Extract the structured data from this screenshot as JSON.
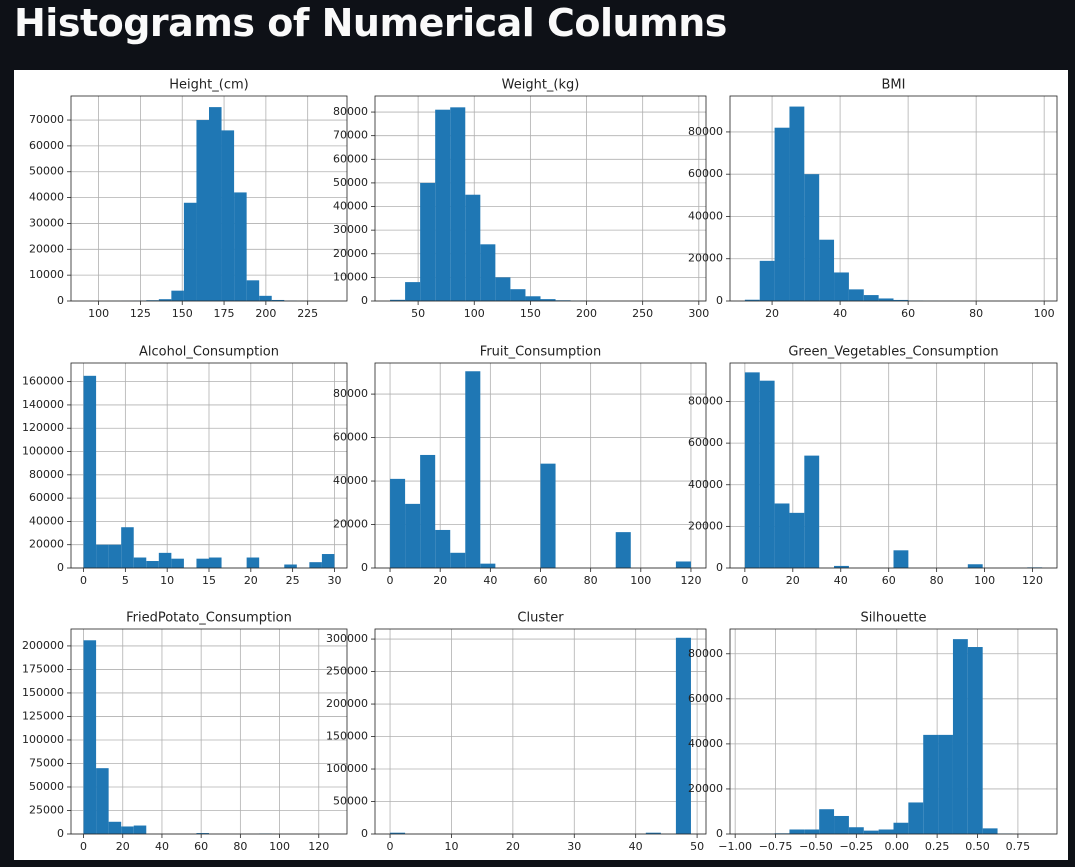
{
  "title": "Histograms of Numerical Columns",
  "chart_data": [
    {
      "type": "histogram",
      "title": "Height_(cm)",
      "color": "#1f77b4",
      "grid": true,
      "bins": [
        91,
        98.5,
        106,
        113.5,
        121,
        128.5,
        136,
        143.5,
        151,
        158.5,
        166,
        173.5,
        181,
        188.5,
        196,
        203.5,
        211,
        218.5,
        226,
        233.5,
        241
      ],
      "counts": [
        0,
        5,
        20,
        50,
        100,
        300,
        700,
        4000,
        38000,
        70000,
        75000,
        66000,
        42000,
        8000,
        2000,
        400,
        100,
        30,
        10,
        5
      ],
      "xlim": [
        83.5,
        248.5
      ],
      "ylim": [
        0,
        79300
      ],
      "xticks": [
        100,
        125,
        150,
        175,
        200,
        225
      ],
      "yticks": [
        0,
        10000,
        20000,
        30000,
        40000,
        50000,
        60000,
        70000
      ]
    },
    {
      "type": "histogram",
      "title": "Weight_(kg)",
      "color": "#1f77b4",
      "grid": true,
      "bins": [
        25,
        38.4,
        51.8,
        65.2,
        78.6,
        92,
        105.4,
        118.8,
        132.2,
        145.6,
        159,
        172.4,
        185.8,
        199.2,
        212.6,
        226,
        239.4,
        252.8,
        266.2,
        279.6,
        293
      ],
      "counts": [
        500,
        8000,
        50000,
        81000,
        82000,
        45000,
        24000,
        10000,
        5000,
        2000,
        800,
        300,
        100,
        50,
        20,
        10,
        5,
        3,
        1,
        1
      ],
      "xlim": [
        11.6,
        306.4
      ],
      "ylim": [
        0,
        86800
      ],
      "xticks": [
        50,
        100,
        150,
        200,
        250,
        300
      ],
      "yticks": [
        0,
        10000,
        20000,
        30000,
        40000,
        50000,
        60000,
        70000,
        80000
      ]
    },
    {
      "type": "histogram",
      "title": "BMI",
      "color": "#1f77b4",
      "grid": true,
      "bins": [
        12,
        16.37,
        20.74,
        25.11,
        29.48,
        33.85,
        38.22,
        42.59,
        46.96,
        51.33,
        55.7,
        60.07,
        64.44,
        68.81,
        73.18,
        77.55,
        81.92,
        86.29,
        90.66,
        95.03,
        99.4
      ],
      "counts": [
        600,
        19000,
        82000,
        92000,
        60000,
        29000,
        13500,
        5500,
        2800,
        1200,
        500,
        200,
        100,
        50,
        20,
        10,
        5,
        3,
        2,
        1
      ],
      "xlim": [
        7.63,
        103.77
      ],
      "ylim": [
        0,
        97000
      ],
      "xticks": [
        20,
        40,
        60,
        80,
        100
      ],
      "yticks": [
        0,
        20000,
        40000,
        60000,
        80000
      ]
    },
    {
      "type": "histogram",
      "title": "Alcohol_Consumption",
      "color": "#1f77b4",
      "grid": true,
      "bins": [
        0,
        1.5,
        3,
        4.5,
        6,
        7.5,
        9,
        10.5,
        12,
        13.5,
        15,
        16.5,
        18,
        19.5,
        21,
        22.5,
        24,
        25.5,
        27,
        28.5,
        30
      ],
      "counts": [
        165000,
        20000,
        20000,
        35000,
        9000,
        6000,
        13000,
        8000,
        0,
        8000,
        9000,
        0,
        0,
        9000,
        0,
        0,
        3000,
        0,
        5000,
        12000
      ],
      "xlim": [
        -1.5,
        31.5
      ],
      "ylim": [
        0,
        176000
      ],
      "xticks": [
        0,
        5,
        10,
        15,
        20,
        25,
        30
      ],
      "yticks": [
        0,
        20000,
        40000,
        60000,
        80000,
        100000,
        120000,
        140000,
        160000
      ]
    },
    {
      "type": "histogram",
      "title": "Fruit_Consumption",
      "color": "#1f77b4",
      "grid": true,
      "bins": [
        0,
        6,
        12,
        18,
        24,
        30,
        36,
        42,
        48,
        54,
        60,
        66,
        72,
        78,
        84,
        90,
        96,
        102,
        108,
        114,
        120
      ],
      "counts": [
        41000,
        29500,
        52000,
        17500,
        7000,
        90500,
        2000,
        0,
        0,
        0,
        48000,
        0,
        0,
        0,
        0,
        16500,
        0,
        0,
        0,
        3000
      ],
      "xlim": [
        -6,
        126
      ],
      "ylim": [
        0,
        94300
      ],
      "xticks": [
        0,
        20,
        40,
        60,
        80,
        100,
        120
      ],
      "yticks": [
        0,
        20000,
        40000,
        60000,
        80000
      ]
    },
    {
      "type": "histogram",
      "title": "Green_Vegetables_Consumption",
      "color": "#1f77b4",
      "grid": true,
      "bins": [
        0,
        6.2,
        12.4,
        18.6,
        24.8,
        31,
        37.2,
        43.4,
        49.6,
        55.8,
        62,
        68.2,
        74.4,
        80.6,
        86.8,
        93,
        99.2,
        105.4,
        111.6,
        117.8,
        124
      ],
      "counts": [
        94000,
        90000,
        31000,
        26500,
        54000,
        0,
        1000,
        0,
        0,
        0,
        8500,
        0,
        0,
        0,
        0,
        1800,
        0,
        0,
        0,
        300
      ],
      "xlim": [
        -6.2,
        130.2
      ],
      "ylim": [
        0,
        98500
      ],
      "xticks": [
        0,
        20,
        40,
        60,
        80,
        100,
        120
      ],
      "yticks": [
        0,
        20000,
        40000,
        60000,
        80000
      ]
    },
    {
      "type": "histogram",
      "title": "FriedPotato_Consumption",
      "color": "#1f77b4",
      "grid": true,
      "bins": [
        0,
        6.4,
        12.8,
        19.2,
        25.6,
        32,
        38.4,
        44.8,
        51.2,
        57.6,
        64,
        70.4,
        76.8,
        83.2,
        89.6,
        96,
        102.4,
        108.8,
        115.2,
        121.6,
        128
      ],
      "counts": [
        206000,
        70000,
        13000,
        8000,
        9000,
        0,
        0,
        0,
        0,
        1000,
        0,
        0,
        0,
        0,
        500,
        0,
        0,
        0,
        0,
        100
      ],
      "xlim": [
        -6.4,
        134.4
      ],
      "ylim": [
        0,
        218000
      ],
      "xticks": [
        0,
        20,
        40,
        60,
        80,
        100,
        120
      ],
      "yticks": [
        0,
        25000,
        50000,
        75000,
        100000,
        125000,
        150000,
        175000,
        200000
      ]
    },
    {
      "type": "histogram",
      "title": "Cluster",
      "color": "#1f77b4",
      "grid": true,
      "bins": [
        0,
        2.45,
        4.9,
        7.35,
        9.8,
        12.25,
        14.7,
        17.15,
        19.6,
        22.05,
        24.5,
        26.95,
        29.4,
        31.85,
        34.3,
        36.75,
        39.2,
        41.65,
        44.1,
        46.55,
        49
      ],
      "counts": [
        2000,
        0,
        0,
        0,
        0,
        0,
        0,
        0,
        0,
        0,
        0,
        0,
        0,
        0,
        0,
        0,
        0,
        2000,
        0,
        302000
      ],
      "xlim": [
        -2.45,
        51.45
      ],
      "ylim": [
        0,
        315500
      ],
      "xticks": [
        0,
        10,
        20,
        30,
        40,
        50
      ],
      "yticks": [
        0,
        50000,
        100000,
        150000,
        200000,
        250000,
        300000
      ]
    },
    {
      "type": "histogram",
      "title": "Silhouette",
      "color": "#1f77b4",
      "grid": true,
      "bins": [
        -0.94,
        -0.848,
        -0.756,
        -0.664,
        -0.572,
        -0.48,
        -0.388,
        -0.296,
        -0.204,
        -0.112,
        -0.02,
        0.072,
        0.164,
        0.256,
        0.348,
        0.44,
        0.532,
        0.624,
        0.716,
        0.808,
        0.9
      ],
      "counts": [
        0,
        100,
        300,
        2000,
        2000,
        11000,
        8000,
        3000,
        1500,
        2000,
        5000,
        14000,
        44000,
        44000,
        86500,
        83000,
        2500,
        200,
        50,
        10
      ],
      "xlim": [
        -1.032,
        0.992
      ],
      "ylim": [
        0,
        91000
      ],
      "xticks": [
        {
          "value": -1,
          "label": "−1.00"
        },
        {
          "value": -0.75,
          "label": "−0.75"
        },
        {
          "value": -0.5,
          "label": "−0.50"
        },
        {
          "value": -0.25,
          "label": "−0.25"
        },
        {
          "value": 0,
          "label": "0.00"
        },
        {
          "value": 0.25,
          "label": "0.25"
        },
        {
          "value": 0.5,
          "label": "0.50"
        },
        {
          "value": 0.75,
          "label": "0.75"
        }
      ],
      "yticks": [
        0,
        20000,
        40000,
        60000,
        80000
      ]
    }
  ]
}
